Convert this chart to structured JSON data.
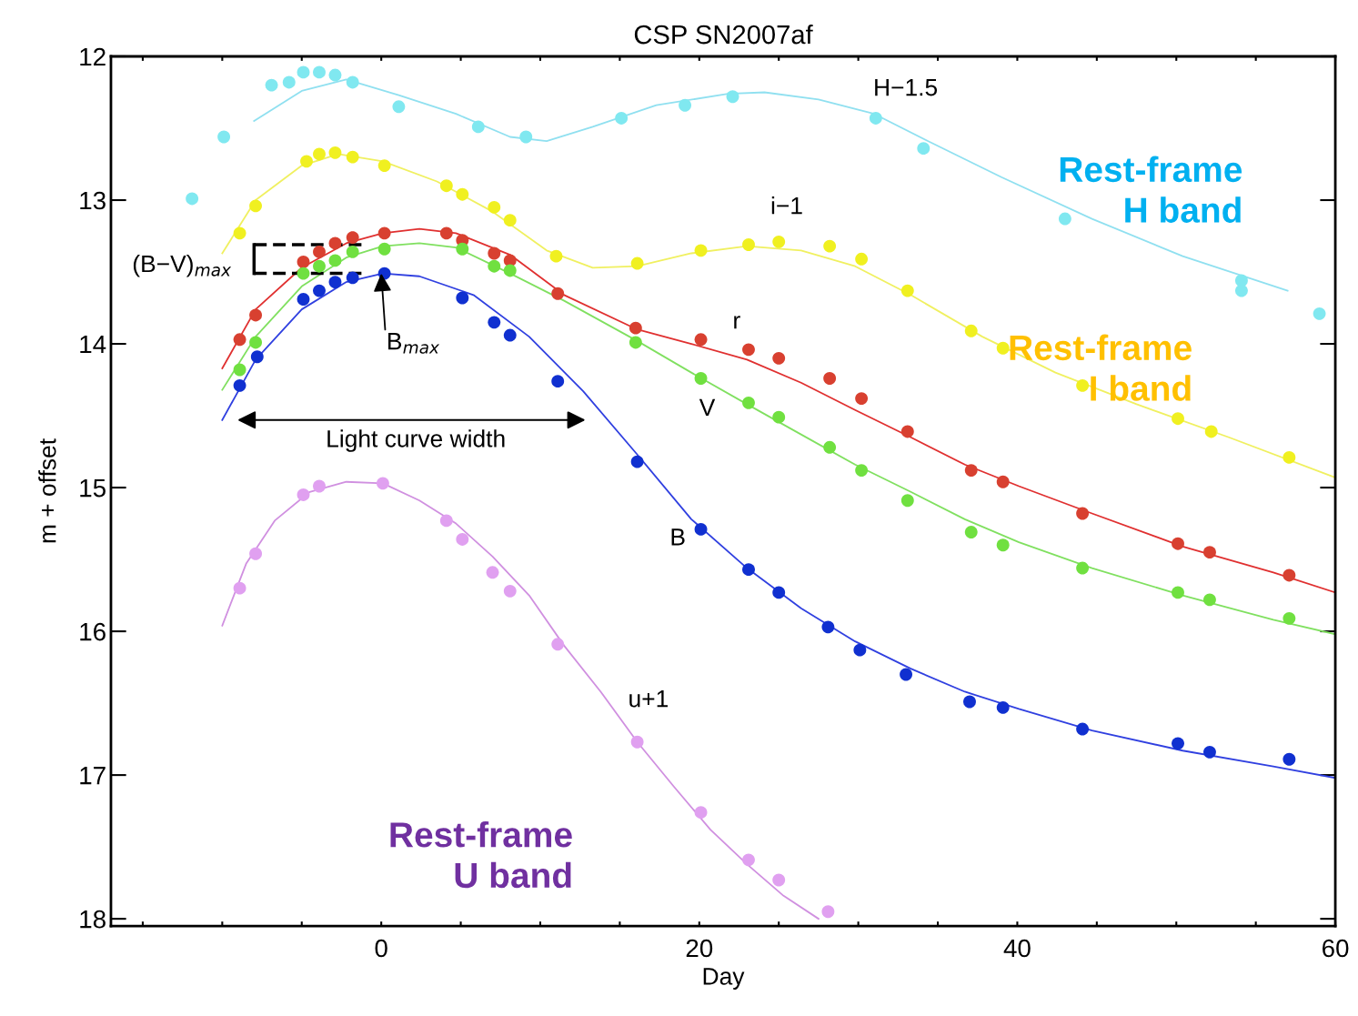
{
  "chart_data": {
    "type": "line",
    "title": "CSP SN2007af",
    "xlabel": "Day",
    "ylabel": "m + offset",
    "xlim": [
      -17,
      60
    ],
    "ylim": [
      18.05,
      12
    ],
    "xticks": [
      {
        "value": -15,
        "label": null
      },
      {
        "value": -10,
        "label": null
      },
      {
        "value": -5,
        "label": null
      },
      0,
      {
        "value": 5,
        "label": null
      },
      {
        "value": 10,
        "label": null
      },
      {
        "value": 15,
        "label": null
      },
      20,
      {
        "value": 25,
        "label": null
      },
      {
        "value": 30,
        "label": null
      },
      {
        "value": 35,
        "label": null
      },
      40,
      {
        "value": 45,
        "label": null
      },
      {
        "value": 50,
        "label": null
      },
      {
        "value": 55,
        "label": null
      },
      60
    ],
    "yticks": [
      12,
      13,
      14,
      15,
      16,
      17,
      18
    ],
    "grid": false,
    "marker": "circle",
    "series": [
      {
        "marker": "none",
        "color": "#90e0f0",
        "x": [
          -8.0,
          -5.0,
          -2.2,
          1.1,
          4.7,
          8.1,
          10.4,
          13.3,
          17.3,
          21.8,
          24.1,
          27.5,
          31.0,
          34.4,
          39.0,
          44.7,
          50.4,
          57.0
        ],
        "values": [
          12.45,
          12.24,
          12.16,
          12.27,
          12.4,
          12.56,
          12.59,
          12.49,
          12.34,
          12.26,
          12.25,
          12.3,
          12.4,
          12.59,
          12.84,
          13.13,
          13.39,
          13.63
        ]
      },
      {
        "type": "scatter",
        "color": "#80e8f0",
        "x": [
          -11.9,
          -9.9,
          -6.9,
          -5.8,
          -4.9,
          -3.9,
          -2.9,
          -1.8,
          1.1,
          6.1,
          9.1,
          15.1,
          19.1,
          22.1,
          31.1,
          34.1,
          43.0,
          54.1,
          54.1,
          59.0
        ],
        "values": [
          12.99,
          12.56,
          12.2,
          12.18,
          12.11,
          12.11,
          12.13,
          12.18,
          12.35,
          12.49,
          12.56,
          12.43,
          12.34,
          12.28,
          12.43,
          12.64,
          13.13,
          13.56,
          13.63,
          13.79
        ]
      },
      {
        "marker": "none",
        "color": "#f0f060",
        "x": [
          -10.0,
          -7.9,
          -5.0,
          -2.7,
          0.1,
          3.5,
          7.0,
          10.4,
          13.3,
          16.1,
          19.5,
          23.0,
          26.4,
          29.8,
          33.3,
          37.8,
          42.4,
          47.5,
          53.3,
          60
        ],
        "values": [
          13.37,
          13.0,
          12.76,
          12.68,
          12.73,
          12.87,
          13.08,
          13.35,
          13.47,
          13.46,
          13.37,
          13.32,
          13.35,
          13.46,
          13.66,
          13.95,
          14.2,
          14.42,
          14.65,
          14.93
        ]
      },
      {
        "type": "scatter",
        "color": "#f0f020",
        "x": [
          -8.9,
          -7.9,
          -4.7,
          -3.9,
          -2.9,
          -1.8,
          0.2,
          4.1,
          5.1,
          7.1,
          8.1,
          11.0,
          16.1,
          20.1,
          23.1,
          25.0,
          28.2,
          30.2,
          33.1,
          37.1,
          39.1,
          44.1,
          50.1,
          52.2,
          57.1
        ],
        "values": [
          13.23,
          13.04,
          12.73,
          12.68,
          12.67,
          12.7,
          12.76,
          12.9,
          12.96,
          13.05,
          13.14,
          13.39,
          13.44,
          13.35,
          13.31,
          13.29,
          13.32,
          13.41,
          13.63,
          13.91,
          14.03,
          14.29,
          14.52,
          14.61,
          14.79
        ]
      },
      {
        "marker": "none",
        "color": "#e03030",
        "x": [
          -10.0,
          -7.9,
          -5.0,
          -2.2,
          0.1,
          2.4,
          4.7,
          8.1,
          11.5,
          16.1,
          19.5,
          23.0,
          26.4,
          29.8,
          33.3,
          36.7,
          40.1,
          44.7,
          50.4,
          56.1,
          60
        ],
        "values": [
          14.17,
          13.76,
          13.47,
          13.3,
          13.23,
          13.2,
          13.23,
          13.38,
          13.66,
          13.9,
          14.0,
          14.11,
          14.27,
          14.46,
          14.65,
          14.84,
          14.99,
          15.18,
          15.41,
          15.59,
          15.73
        ]
      },
      {
        "type": "scatter",
        "color": "#d84030",
        "x": [
          -8.9,
          -7.9,
          -4.9,
          -3.9,
          -2.9,
          -1.8,
          0.2,
          4.1,
          5.1,
          7.1,
          8.1,
          11.1,
          16.0,
          20.1,
          23.1,
          25.0,
          28.2,
          30.2,
          33.1,
          37.1,
          39.1,
          44.1,
          50.1,
          52.1,
          57.1
        ],
        "values": [
          13.97,
          13.8,
          13.43,
          13.36,
          13.3,
          13.26,
          13.23,
          13.23,
          13.28,
          13.37,
          13.42,
          13.65,
          13.89,
          13.97,
          14.04,
          14.1,
          14.24,
          14.38,
          14.61,
          14.88,
          14.96,
          15.18,
          15.39,
          15.45,
          15.61
        ]
      },
      {
        "marker": "none",
        "color": "#80e060",
        "x": [
          -10.0,
          -7.9,
          -5.0,
          -2.2,
          0.1,
          2.4,
          4.7,
          8.1,
          11.5,
          16.1,
          19.5,
          23.0,
          26.4,
          29.8,
          33.3,
          36.7,
          40.1,
          44.7,
          50.4,
          56.1,
          60
        ],
        "values": [
          14.32,
          13.95,
          13.6,
          13.4,
          13.32,
          13.3,
          13.33,
          13.51,
          13.7,
          13.98,
          14.2,
          14.42,
          14.63,
          14.84,
          15.03,
          15.22,
          15.38,
          15.56,
          15.75,
          15.92,
          16.02
        ]
      },
      {
        "type": "scatter",
        "color": "#70e040",
        "x": [
          -8.9,
          -7.9,
          -4.9,
          -3.9,
          -2.9,
          -1.8,
          0.2,
          5.1,
          7.1,
          8.1,
          16.0,
          20.1,
          23.1,
          25.0,
          28.2,
          30.2,
          33.1,
          37.1,
          39.1,
          44.1,
          50.1,
          52.1,
          57.1
        ],
        "values": [
          14.18,
          13.99,
          13.51,
          13.46,
          13.42,
          13.36,
          13.34,
          13.34,
          13.46,
          13.49,
          13.99,
          14.24,
          14.41,
          14.51,
          14.72,
          14.88,
          15.09,
          15.31,
          15.4,
          15.56,
          15.73,
          15.78,
          15.91
        ]
      },
      {
        "marker": "none",
        "color": "#3040e0",
        "x": [
          -10.0,
          -7.9,
          -5.0,
          -2.2,
          0.1,
          2.4,
          5.8,
          9.3,
          12.7,
          16.1,
          19.5,
          23.0,
          26.4,
          29.8,
          33.3,
          36.7,
          40.1,
          44.7,
          50.4,
          56.1,
          60
        ],
        "values": [
          14.53,
          14.11,
          13.76,
          13.57,
          13.51,
          13.53,
          13.66,
          13.95,
          14.33,
          14.77,
          15.22,
          15.56,
          15.84,
          16.07,
          16.26,
          16.42,
          16.54,
          16.69,
          16.83,
          16.94,
          17.02
        ]
      },
      {
        "type": "scatter",
        "color": "#1030d0",
        "x": [
          -8.9,
          -7.8,
          -4.9,
          -3.9,
          -2.9,
          -1.8,
          0.2,
          5.1,
          7.1,
          8.1,
          11.1,
          16.1,
          20.1,
          23.1,
          25.0,
          28.1,
          30.1,
          33.0,
          37.0,
          39.1,
          44.1,
          50.1,
          52.1,
          57.1
        ],
        "values": [
          14.29,
          14.09,
          13.69,
          13.63,
          13.57,
          13.54,
          13.51,
          13.68,
          13.85,
          13.94,
          14.26,
          14.82,
          15.29,
          15.57,
          15.73,
          15.97,
          16.13,
          16.3,
          16.49,
          16.53,
          16.68,
          16.78,
          16.84,
          16.89
        ]
      },
      {
        "marker": "none",
        "color": "#d090e0",
        "x": [
          -10.0,
          -8.5,
          -6.7,
          -4.5,
          -2.2,
          0.1,
          2.4,
          4.7,
          7.0,
          9.3,
          11.5,
          13.8,
          16.1,
          18.4,
          20.7,
          23.0,
          25.3,
          27.5
        ],
        "values": [
          15.96,
          15.53,
          15.23,
          15.03,
          14.96,
          14.97,
          15.09,
          15.25,
          15.48,
          15.75,
          16.1,
          16.42,
          16.77,
          17.08,
          17.38,
          17.62,
          17.84,
          18.0
        ]
      },
      {
        "type": "scatter",
        "color": "#e0a0f0",
        "x": [
          -8.9,
          -7.9,
          -4.9,
          -3.9,
          0.1,
          4.1,
          5.1,
          7.0,
          8.1,
          11.1,
          16.1,
          20.1,
          23.1,
          25.0,
          28.1
        ],
        "values": [
          15.7,
          15.46,
          15.05,
          14.99,
          14.97,
          15.23,
          15.36,
          15.59,
          15.72,
          16.09,
          16.77,
          17.26,
          17.59,
          17.73,
          17.95
        ]
      }
    ],
    "annotations": [
      "H−1.5",
      "i−1",
      "r",
      "V",
      "B",
      "u+1",
      "(B−V)$_{max}$",
      {
        "text": "B$_{max}$",
        "x": 0,
        "y": 13.51
      },
      "Light curve width",
      "Rest-frame\nH band",
      "Rest-frame\nI band",
      "Rest-frame\nU band"
    ]
  }
}
